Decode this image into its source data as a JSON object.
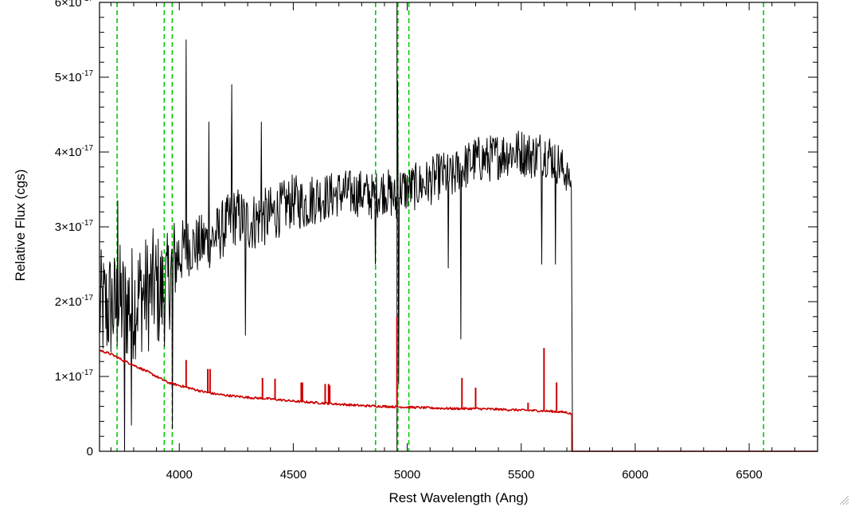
{
  "chart_data": {
    "type": "line",
    "title": "",
    "xlabel": "Rest Wavelength (Ang)",
    "ylabel": "Relative Flux (cgs)",
    "xlim": [
      3650,
      6800
    ],
    "ylim": [
      0,
      6e-17
    ],
    "x_ticks": [
      {
        "value": 4000,
        "label": "4000"
      },
      {
        "value": 4500,
        "label": "4500"
      },
      {
        "value": 5000,
        "label": "5000"
      },
      {
        "value": 5500,
        "label": "5500"
      },
      {
        "value": 6000,
        "label": "6000"
      },
      {
        "value": 6500,
        "label": "6500"
      }
    ],
    "y_ticks": [
      {
        "value": 0,
        "mant": "0",
        "exp": ""
      },
      {
        "value": 1e-17,
        "mant": "1×10",
        "exp": "-17"
      },
      {
        "value": 2e-17,
        "mant": "2×10",
        "exp": "-17"
      },
      {
        "value": 3e-17,
        "mant": "3×10",
        "exp": "-17"
      },
      {
        "value": 4e-17,
        "mant": "4×10",
        "exp": "-17"
      },
      {
        "value": 5e-17,
        "mant": "5×10",
        "exp": "-17"
      },
      {
        "value": 6e-17,
        "mant": "6×10",
        "exp": "-17"
      }
    ],
    "observed_spectrum": {
      "color": "#000000",
      "x": [
        3650,
        3680,
        3700,
        3720,
        3740,
        3760,
        3780,
        3800,
        3830,
        3860,
        3890,
        3920,
        3950,
        3970,
        3990,
        4020,
        4050,
        4080,
        4110,
        4150,
        4200,
        4250,
        4300,
        4350,
        4400,
        4450,
        4500,
        4550,
        4600,
        4650,
        4700,
        4750,
        4800,
        4850,
        4900,
        4940,
        4955,
        4965,
        5000,
        5050,
        5100,
        5150,
        5200,
        5230,
        5250,
        5300,
        5350,
        5400,
        5450,
        5500,
        5550,
        5600,
        5650,
        5700,
        5720,
        5725,
        5730,
        6800
      ],
      "y": [
        1.9e-17,
        1.9e-17,
        1.95e-17,
        1.9e-17,
        2e-17,
        1.9e-17,
        2e-17,
        2e-17,
        2.1e-17,
        2.1e-17,
        2.2e-17,
        2.1e-17,
        2.2e-17,
        2.5e-17,
        2.6e-17,
        2.7e-17,
        2.75e-17,
        2.75e-17,
        2.8e-17,
        2.85e-17,
        3e-17,
        3.15e-17,
        3.05e-17,
        3.1e-17,
        3.15e-17,
        3.25e-17,
        3.35e-17,
        3.3e-17,
        3.4e-17,
        3.4e-17,
        3.45e-17,
        3.45e-17,
        3.45e-17,
        3.4e-17,
        3.5e-17,
        3.4e-17,
        3.3e-17,
        3.5e-17,
        3.5e-17,
        3.55e-17,
        3.6e-17,
        3.7e-17,
        3.65e-17,
        3.8e-17,
        3.8e-17,
        3.9e-17,
        3.9e-17,
        3.95e-17,
        4e-17,
        4e-17,
        3.95e-17,
        4e-17,
        3.9e-17,
        3.7e-17,
        3.55e-17,
        3.55e-17,
        0,
        0
      ],
      "noise_amplitude": [
        1e-17,
        1e-17,
        1e-17,
        1e-17,
        1e-17,
        1e-17,
        1e-17,
        1e-17,
        1e-17,
        1e-17,
        1e-17,
        1e-17,
        9e-18,
        8e-18,
        7e-18,
        5e-18,
        5e-18,
        5e-18,
        5e-18,
        5e-18,
        5e-18,
        5e-18,
        5e-18,
        5e-18,
        5e-18,
        4.5e-18,
        4.5e-18,
        4.5e-18,
        4.5e-18,
        4e-18,
        4e-18,
        4e-18,
        4e-18,
        4e-18,
        4e-18,
        4e-18,
        4e-18,
        4e-18,
        4e-18,
        4e-18,
        4e-18,
        4e-18,
        4e-18,
        4e-18,
        4e-18,
        4e-18,
        4e-18,
        4e-18,
        4e-18,
        4e-18,
        4e-18,
        4e-18,
        4e-18,
        3e-18,
        1e-18,
        0,
        0,
        0
      ],
      "features": [
        {
          "x": 3730,
          "y": 3.35e-17
        },
        {
          "x": 3760,
          "y": 0
        },
        {
          "x": 3790,
          "y": 3.5e-18
        },
        {
          "x": 3970,
          "y": 3e-18
        },
        {
          "x": 4030,
          "y": 5.5e-17
        },
        {
          "x": 4130,
          "y": 4.4e-17
        },
        {
          "x": 4230,
          "y": 4.9e-17
        },
        {
          "x": 4290,
          "y": 1.55e-17
        },
        {
          "x": 4360,
          "y": 4.4e-17
        },
        {
          "x": 4860,
          "y": 2.5e-17
        },
        {
          "x": 4958,
          "y": 4.95e-17
        },
        {
          "x": 4962,
          "y": 9e-18
        },
        {
          "x": 5180,
          "y": 2.45e-17
        },
        {
          "x": 5235,
          "y": 1.5e-17
        },
        {
          "x": 5590,
          "y": 2.5e-17
        },
        {
          "x": 5650,
          "y": 2.5e-17
        }
      ]
    },
    "model_spectrum": {
      "color": "#cc0000",
      "x": [
        3650,
        3700,
        3750,
        3800,
        3850,
        3900,
        3950,
        4000,
        4050,
        4100,
        4150,
        4200,
        4300,
        4400,
        4500,
        4600,
        4700,
        4800,
        4900,
        5000,
        5100,
        5200,
        5300,
        5400,
        5500,
        5600,
        5700,
        5720,
        5725,
        5730,
        6800
      ],
      "y": [
        1.35e-17,
        1.3e-17,
        1.22e-17,
        1.15e-17,
        1.08e-17,
        1e-17,
        9.2e-18,
        8.8e-18,
        8.4e-18,
        8e-18,
        7.7e-18,
        7.5e-18,
        7.2e-18,
        7e-18,
        6.7e-18,
        6.5e-18,
        6.3e-18,
        6.1e-18,
        6e-18,
        5.9e-18,
        5.8e-18,
        5.7e-18,
        5.7e-18,
        5.6e-18,
        5.5e-18,
        5.4e-18,
        5.2e-18,
        5e-18,
        2e-18,
        0,
        0
      ],
      "emission_lines": [
        {
          "x": 4030,
          "y": 1.22e-17
        },
        {
          "x": 4125,
          "y": 1.1e-17
        },
        {
          "x": 4135,
          "y": 1.1e-17
        },
        {
          "x": 4365,
          "y": 9.8e-18
        },
        {
          "x": 4420,
          "y": 9.7e-18
        },
        {
          "x": 4535,
          "y": 9.2e-18
        },
        {
          "x": 4540,
          "y": 9.2e-18
        },
        {
          "x": 4640,
          "y": 9e-18
        },
        {
          "x": 4655,
          "y": 9e-18
        },
        {
          "x": 4660,
          "y": 8.8e-18
        },
        {
          "x": 4955,
          "y": 1.8e-17
        },
        {
          "x": 5240,
          "y": 9.8e-18
        },
        {
          "x": 5300,
          "y": 8.5e-18
        },
        {
          "x": 5530,
          "y": 6.5e-18
        },
        {
          "x": 5600,
          "y": 1.38e-17
        },
        {
          "x": 5655,
          "y": 9.2e-18
        }
      ]
    },
    "reference_lines": {
      "color": "#00cc00",
      "style": "dashed",
      "x": [
        3727,
        3934,
        3969,
        4861,
        4959,
        5007,
        6563
      ]
    },
    "marker_line": {
      "color": "#000000",
      "x": 4955
    }
  }
}
